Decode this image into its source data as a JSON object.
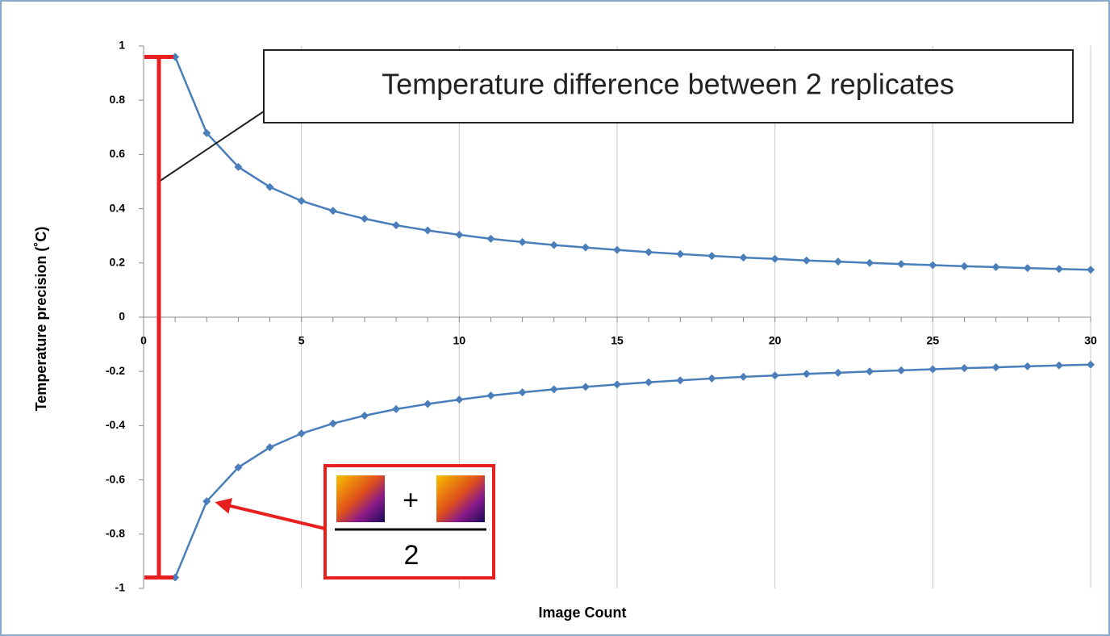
{
  "chart_data": {
    "type": "line",
    "x_label": "Image Count",
    "y_label": "Temperature precision (˚C)",
    "x": [
      1,
      2,
      3,
      4,
      5,
      6,
      7,
      8,
      9,
      10,
      11,
      12,
      13,
      14,
      15,
      16,
      17,
      18,
      19,
      20,
      21,
      22,
      23,
      24,
      25,
      26,
      27,
      28,
      29,
      30
    ],
    "series": [
      {
        "color": "#4a7ebb",
        "values": [
          0.96,
          0.679,
          0.554,
          0.48,
          0.429,
          0.392,
          0.363,
          0.339,
          0.32,
          0.304,
          0.289,
          0.277,
          0.266,
          0.257,
          0.248,
          0.24,
          0.233,
          0.226,
          0.22,
          0.215,
          0.209,
          0.205,
          0.2,
          0.196,
          0.192,
          0.188,
          0.185,
          0.181,
          0.178,
          0.175
        ]
      },
      {
        "color": "#4a7ebb",
        "values": [
          -0.96,
          -0.679,
          -0.554,
          -0.48,
          -0.429,
          -0.392,
          -0.363,
          -0.339,
          -0.32,
          -0.304,
          -0.289,
          -0.277,
          -0.266,
          -0.257,
          -0.248,
          -0.24,
          -0.233,
          -0.226,
          -0.22,
          -0.215,
          -0.209,
          -0.205,
          -0.2,
          -0.196,
          -0.192,
          -0.188,
          -0.185,
          -0.181,
          -0.178,
          -0.175
        ]
      }
    ],
    "xlim": [
      0,
      30
    ],
    "ylim": [
      -1,
      1
    ],
    "xticks": [
      0,
      5,
      10,
      15,
      20,
      25,
      30
    ],
    "yticks": [
      1,
      0.8,
      0.6,
      0.4,
      0.2,
      0,
      -0.2,
      -0.4,
      -0.6,
      -0.8,
      -1
    ],
    "grid": true,
    "annotations": {
      "box_text": "Temperature difference between 2 replicates",
      "plus": "+",
      "denominator": "2",
      "color": "#e81f1f"
    }
  }
}
